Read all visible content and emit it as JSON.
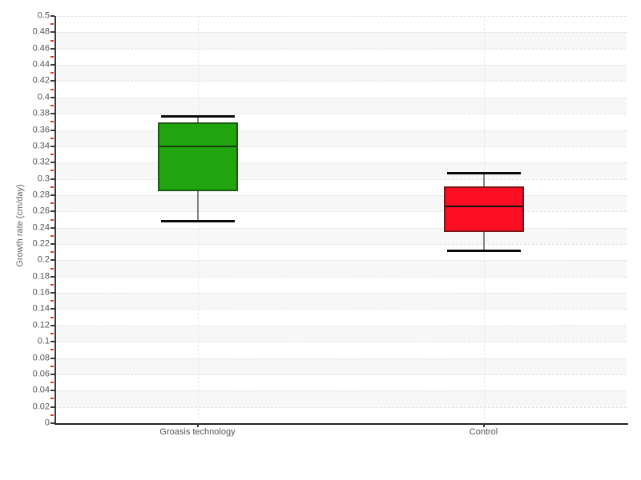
{
  "chart_data": {
    "type": "box",
    "title": "",
    "xlabel": "",
    "ylabel": "Growth rate (cm/day)",
    "ylim": [
      0,
      0.5
    ],
    "ytick_step": 0.02,
    "yminor_step": 0.01,
    "grid": true,
    "legend_position": "none",
    "yticks": [
      "0",
      "0.02",
      "0.04",
      "0.06",
      "0.08",
      "0.1",
      "0.12",
      "0.14",
      "0.16",
      "0.18",
      "0.2",
      "0.22",
      "0.24",
      "0.26",
      "0.28",
      "0.3",
      "0.32",
      "0.34",
      "0.36",
      "0.38",
      "0.4",
      "0.42",
      "0.44",
      "0.46",
      "0.48",
      "0.5"
    ],
    "categories": [
      "Groasis technology",
      "Control"
    ],
    "series": [
      {
        "name": "Groasis technology",
        "min": 0.248,
        "q1": 0.285,
        "median": 0.34,
        "q3": 0.369,
        "max": 0.377,
        "box_color": "#21a50e",
        "border_color": "#175c10",
        "median_color": "#143c0c"
      },
      {
        "name": "Control",
        "min": 0.212,
        "q1": 0.235,
        "median": 0.266,
        "q3": 0.291,
        "max": 0.307,
        "box_color": "#fc0d22",
        "border_color": "#7c1616",
        "median_color": "#121212"
      }
    ],
    "style": {
      "band_color": "#f7f7f7",
      "gridline_color": "#e0e0e0",
      "axis_color": "#3a3a3a",
      "minor_tick_color": "#e0382a",
      "tick_label_color": "#555555",
      "whisker_stem_color": "#828282",
      "whisker_cap_color": "#0a0a0a"
    }
  }
}
